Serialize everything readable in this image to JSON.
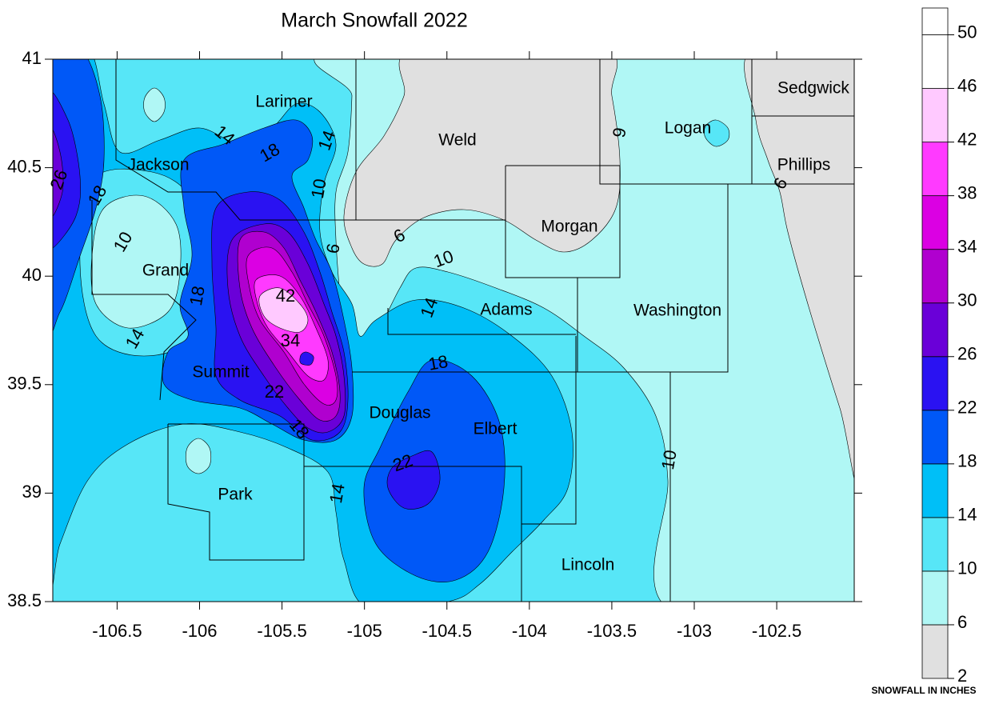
{
  "map": {
    "title": "March Snowfall 2022",
    "xaxis": {
      "lim": [
        -106.89,
        -102.03
      ],
      "ticks": [
        -106.5,
        -106,
        -105.5,
        -105,
        -104.5,
        -104,
        -103.5,
        -103,
        -102.5
      ]
    },
    "yaxis": {
      "lim": [
        38.5,
        41
      ],
      "ticks": [
        38.5,
        39,
        39.5,
        40,
        40.5,
        41
      ]
    },
    "counties": [
      "Larimer",
      "Weld",
      "Jackson",
      "Grand",
      "Logan",
      "Sedgwick",
      "Phillips",
      "Morgan",
      "Adams",
      "Washington",
      "Summit",
      "Douglas",
      "Elbert",
      "Park",
      "Lincoln"
    ],
    "contour_labels": [
      26,
      18,
      10,
      14,
      14,
      18,
      14,
      10,
      6,
      6,
      10,
      14,
      18,
      42,
      34,
      22,
      18,
      18,
      22,
      14,
      10,
      9,
      6
    ],
    "colorbar": {
      "label": "SNOWFALL IN INCHES",
      "lim": [
        2,
        52
      ],
      "levels": [
        2,
        6,
        10,
        14,
        18,
        22,
        26,
        30,
        34,
        38,
        42,
        46,
        50
      ],
      "colors": [
        "#e0e0e0",
        "#b0f7f5",
        "#57e6f7",
        "#00bff7",
        "#0058f7",
        "#2a12f2",
        "#6a00d8",
        "#b000cf",
        "#db00e3",
        "#ff3aff",
        "#ffc9ff",
        "#ffffff",
        "#ffffff"
      ]
    }
  }
}
